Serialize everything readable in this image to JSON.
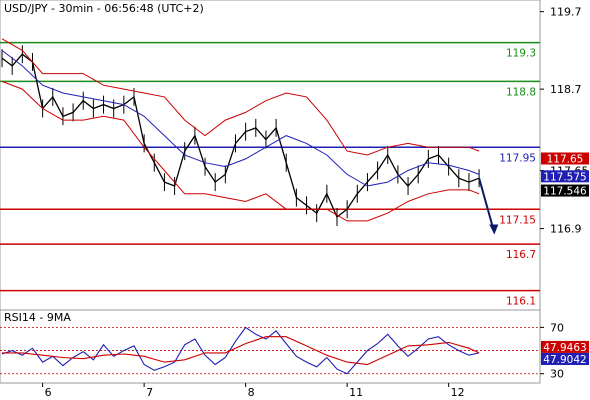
{
  "chart_data": [
    {
      "type": "line",
      "panel": "price",
      "title": "USD/JPY - 30min - 06:56:48 (UTC+2)",
      "y_ticks": [
        119.7,
        118.7,
        117.65,
        116.9
      ],
      "y_tick_labels": [
        "119.7",
        "118.7",
        "117.65",
        "116.9"
      ],
      "ylim": [
        115.85,
        119.85
      ],
      "x_ticks": [
        {
          "label": "6",
          "x": 2
        },
        {
          "label": "7",
          "x": 12
        },
        {
          "label": "8",
          "x": 22
        },
        {
          "label": "11",
          "x": 32
        },
        {
          "label": "12",
          "x": 42
        }
      ],
      "xlim": [
        -2.2,
        51
      ],
      "horizontal_levels": [
        {
          "value": 119.3,
          "label": "119.3",
          "color": "#1a8c1a"
        },
        {
          "value": 118.8,
          "label": "118.8",
          "color": "#1a8c1a"
        },
        {
          "value": 117.95,
          "label": "117.95",
          "color": "#1f1fb4"
        },
        {
          "value": 117.15,
          "label": "117.15",
          "color": "#cc0000"
        },
        {
          "value": 116.7,
          "label": "116.7",
          "color": "#cc0000"
        },
        {
          "value": 116.1,
          "label": "116.1",
          "color": "#cc0000"
        }
      ],
      "price_tags": [
        {
          "value": 117.65,
          "label": "117.65",
          "color": "#cc0000"
        },
        {
          "value": 117.575,
          "label": "117.575",
          "color": "#1f1fb4"
        },
        {
          "value": 117.546,
          "label": "117.546",
          "color": "#000000"
        }
      ],
      "series": [
        {
          "role": "price",
          "color": "#000000",
          "x": [
            -2,
            -1,
            0,
            1,
            2,
            3,
            4,
            5,
            6,
            7,
            8,
            9,
            10,
            11,
            12,
            13,
            14,
            15,
            16,
            17,
            18,
            19,
            20,
            21,
            22,
            23,
            24,
            25,
            26,
            27,
            28,
            29,
            30,
            31,
            32,
            33,
            34,
            35,
            36,
            37,
            38,
            39,
            40,
            41,
            42,
            43,
            44,
            45
          ],
          "y": [
            119.1,
            119.0,
            119.15,
            119.05,
            118.45,
            118.6,
            118.35,
            118.4,
            118.55,
            118.45,
            118.5,
            118.45,
            118.5,
            118.6,
            118.0,
            117.75,
            117.5,
            117.45,
            117.9,
            118.1,
            117.7,
            117.5,
            117.6,
            118.0,
            118.15,
            118.2,
            118.05,
            118.2,
            117.75,
            117.3,
            117.2,
            117.1,
            117.35,
            117.05,
            117.15,
            117.35,
            117.5,
            117.65,
            117.85,
            117.6,
            117.45,
            117.6,
            117.8,
            117.85,
            117.7,
            117.55,
            117.5,
            117.55
          ]
        },
        {
          "role": "moving-average",
          "color": "#1f1fb4",
          "x": [
            -2,
            0,
            2,
            4,
            6,
            8,
            10,
            12,
            14,
            16,
            18,
            20,
            22,
            24,
            26,
            28,
            30,
            32,
            34,
            36,
            38,
            40,
            42,
            44,
            45
          ],
          "y": [
            119.2,
            119.0,
            118.75,
            118.65,
            118.6,
            118.55,
            118.5,
            118.35,
            118.1,
            117.85,
            117.75,
            117.7,
            117.8,
            117.95,
            118.1,
            118.0,
            117.85,
            117.6,
            117.45,
            117.5,
            117.65,
            117.75,
            117.72,
            117.65,
            117.6
          ]
        },
        {
          "role": "upper-band",
          "color": "#cc0000",
          "x": [
            -2,
            0,
            2,
            4,
            6,
            8,
            10,
            12,
            14,
            16,
            18,
            20,
            22,
            24,
            26,
            28,
            30,
            32,
            34,
            36,
            38,
            40,
            42,
            44,
            45
          ],
          "y": [
            119.35,
            119.2,
            118.9,
            118.9,
            118.9,
            118.75,
            118.7,
            118.65,
            118.6,
            118.3,
            118.1,
            118.3,
            118.4,
            118.55,
            118.65,
            118.6,
            118.3,
            117.9,
            117.85,
            117.95,
            118.0,
            117.95,
            117.95,
            117.95,
            117.9
          ]
        },
        {
          "role": "lower-band",
          "color": "#cc0000",
          "x": [
            -2,
            0,
            2,
            4,
            6,
            8,
            10,
            12,
            14,
            16,
            18,
            20,
            22,
            24,
            26,
            28,
            30,
            32,
            34,
            36,
            38,
            40,
            42,
            44,
            45
          ],
          "y": [
            118.8,
            118.7,
            118.45,
            118.3,
            118.3,
            118.35,
            118.3,
            117.95,
            117.65,
            117.35,
            117.35,
            117.3,
            117.25,
            117.35,
            117.15,
            117.15,
            117.15,
            117.0,
            117.0,
            117.1,
            117.25,
            117.35,
            117.4,
            117.4,
            117.35
          ]
        },
        {
          "role": "projection",
          "color": "#0b1a66",
          "x": [
            45,
            46.5
          ],
          "y": [
            117.55,
            116.85
          ]
        }
      ]
    },
    {
      "type": "line",
      "panel": "oscillator",
      "title": "RSI14 - 9MA",
      "y_ticks": [
        70,
        30
      ],
      "y_tick_labels": [
        "70",
        "30"
      ],
      "ylim": [
        22,
        85
      ],
      "horizontal_levels": [
        {
          "value": 70,
          "color": "#cc0000"
        },
        {
          "value": 50,
          "color": "#cc0000"
        },
        {
          "value": 30,
          "color": "#cc0000"
        }
      ],
      "price_tags": [
        {
          "value": 47.9463,
          "label": "47.9463",
          "color": "#cc0000"
        },
        {
          "value": 47.9042,
          "label": "47.9042",
          "color": "#1f1fb4"
        }
      ],
      "series": [
        {
          "role": "rsi",
          "color": "#1f1fb4",
          "x": [
            -2,
            -1,
            0,
            1,
            2,
            3,
            4,
            5,
            6,
            7,
            8,
            9,
            10,
            11,
            12,
            13,
            14,
            15,
            16,
            17,
            18,
            19,
            20,
            21,
            22,
            23,
            24,
            25,
            26,
            27,
            28,
            29,
            30,
            31,
            32,
            33,
            34,
            35,
            36,
            37,
            38,
            39,
            40,
            41,
            42,
            43,
            44,
            45
          ],
          "y": [
            47,
            50,
            46,
            52,
            40,
            45,
            37,
            44,
            49,
            42,
            55,
            45,
            50,
            54,
            38,
            33,
            36,
            40,
            55,
            60,
            46,
            38,
            44,
            58,
            70,
            64,
            60,
            67,
            56,
            45,
            40,
            36,
            44,
            34,
            30,
            40,
            50,
            56,
            64,
            54,
            45,
            52,
            60,
            62,
            55,
            50,
            46,
            48
          ]
        },
        {
          "role": "rsi-moving-average",
          "color": "#cc0000",
          "x": [
            -2,
            0,
            2,
            4,
            6,
            8,
            10,
            12,
            14,
            16,
            18,
            20,
            22,
            24,
            26,
            28,
            30,
            32,
            34,
            36,
            38,
            40,
            42,
            44,
            45
          ],
          "y": [
            48,
            48,
            46,
            44,
            43,
            46,
            47,
            45,
            40,
            42,
            48,
            48,
            56,
            62,
            62,
            54,
            46,
            40,
            38,
            46,
            54,
            55,
            57,
            52,
            48
          ]
        }
      ]
    }
  ]
}
